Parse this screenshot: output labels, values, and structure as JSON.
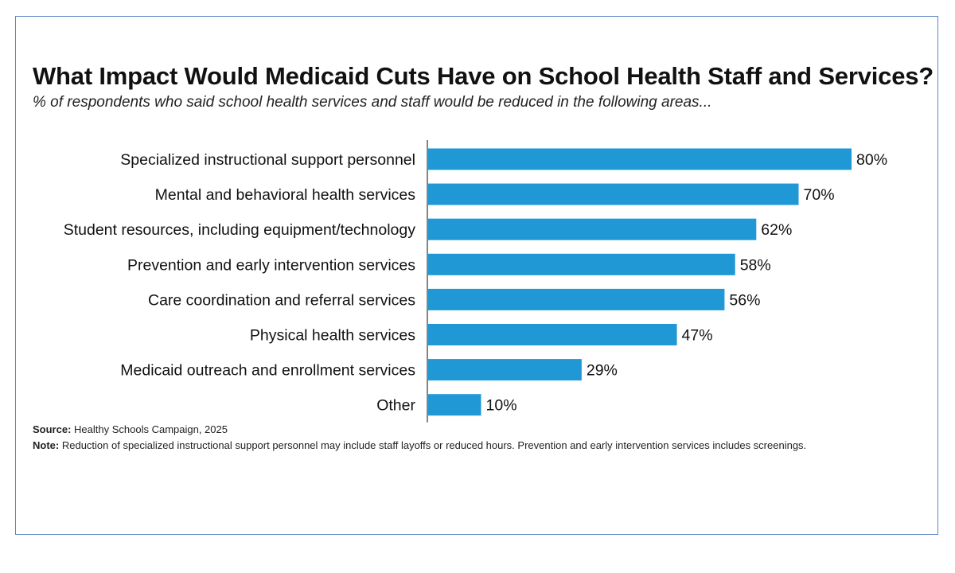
{
  "chart_data": {
    "type": "bar",
    "orientation": "horizontal",
    "title": "What Impact Would Medicaid Cuts Have on School Health Staff and Services?",
    "subtitle": "% of respondents who said school health services and staff would be reduced in the following areas...",
    "categories": [
      "Specialized instructional support personnel",
      "Mental and behavioral health services",
      "Student resources, including equipment/technology",
      "Prevention and early intervention services",
      "Care coordination and referral services",
      "Physical health services",
      "Medicaid outreach and enrollment services",
      "Other"
    ],
    "values": [
      80,
      70,
      62,
      58,
      56,
      47,
      29,
      10
    ],
    "value_labels": [
      "80%",
      "70%",
      "62%",
      "58%",
      "56%",
      "47%",
      "29%",
      "10%"
    ],
    "xlim": [
      0,
      80
    ],
    "unit": "%",
    "bar_color": "#1f98d5",
    "grid": false
  },
  "footer": {
    "source_label": "Source:",
    "source_text": "Healthy Schools Campaign, 2025",
    "note_label": "Note:",
    "note_text": "Reduction of specialized instructional support personnel may include staff layoffs or reduced hours. Prevention and early intervention services includes screenings."
  },
  "frame_color": "#5b86c2"
}
